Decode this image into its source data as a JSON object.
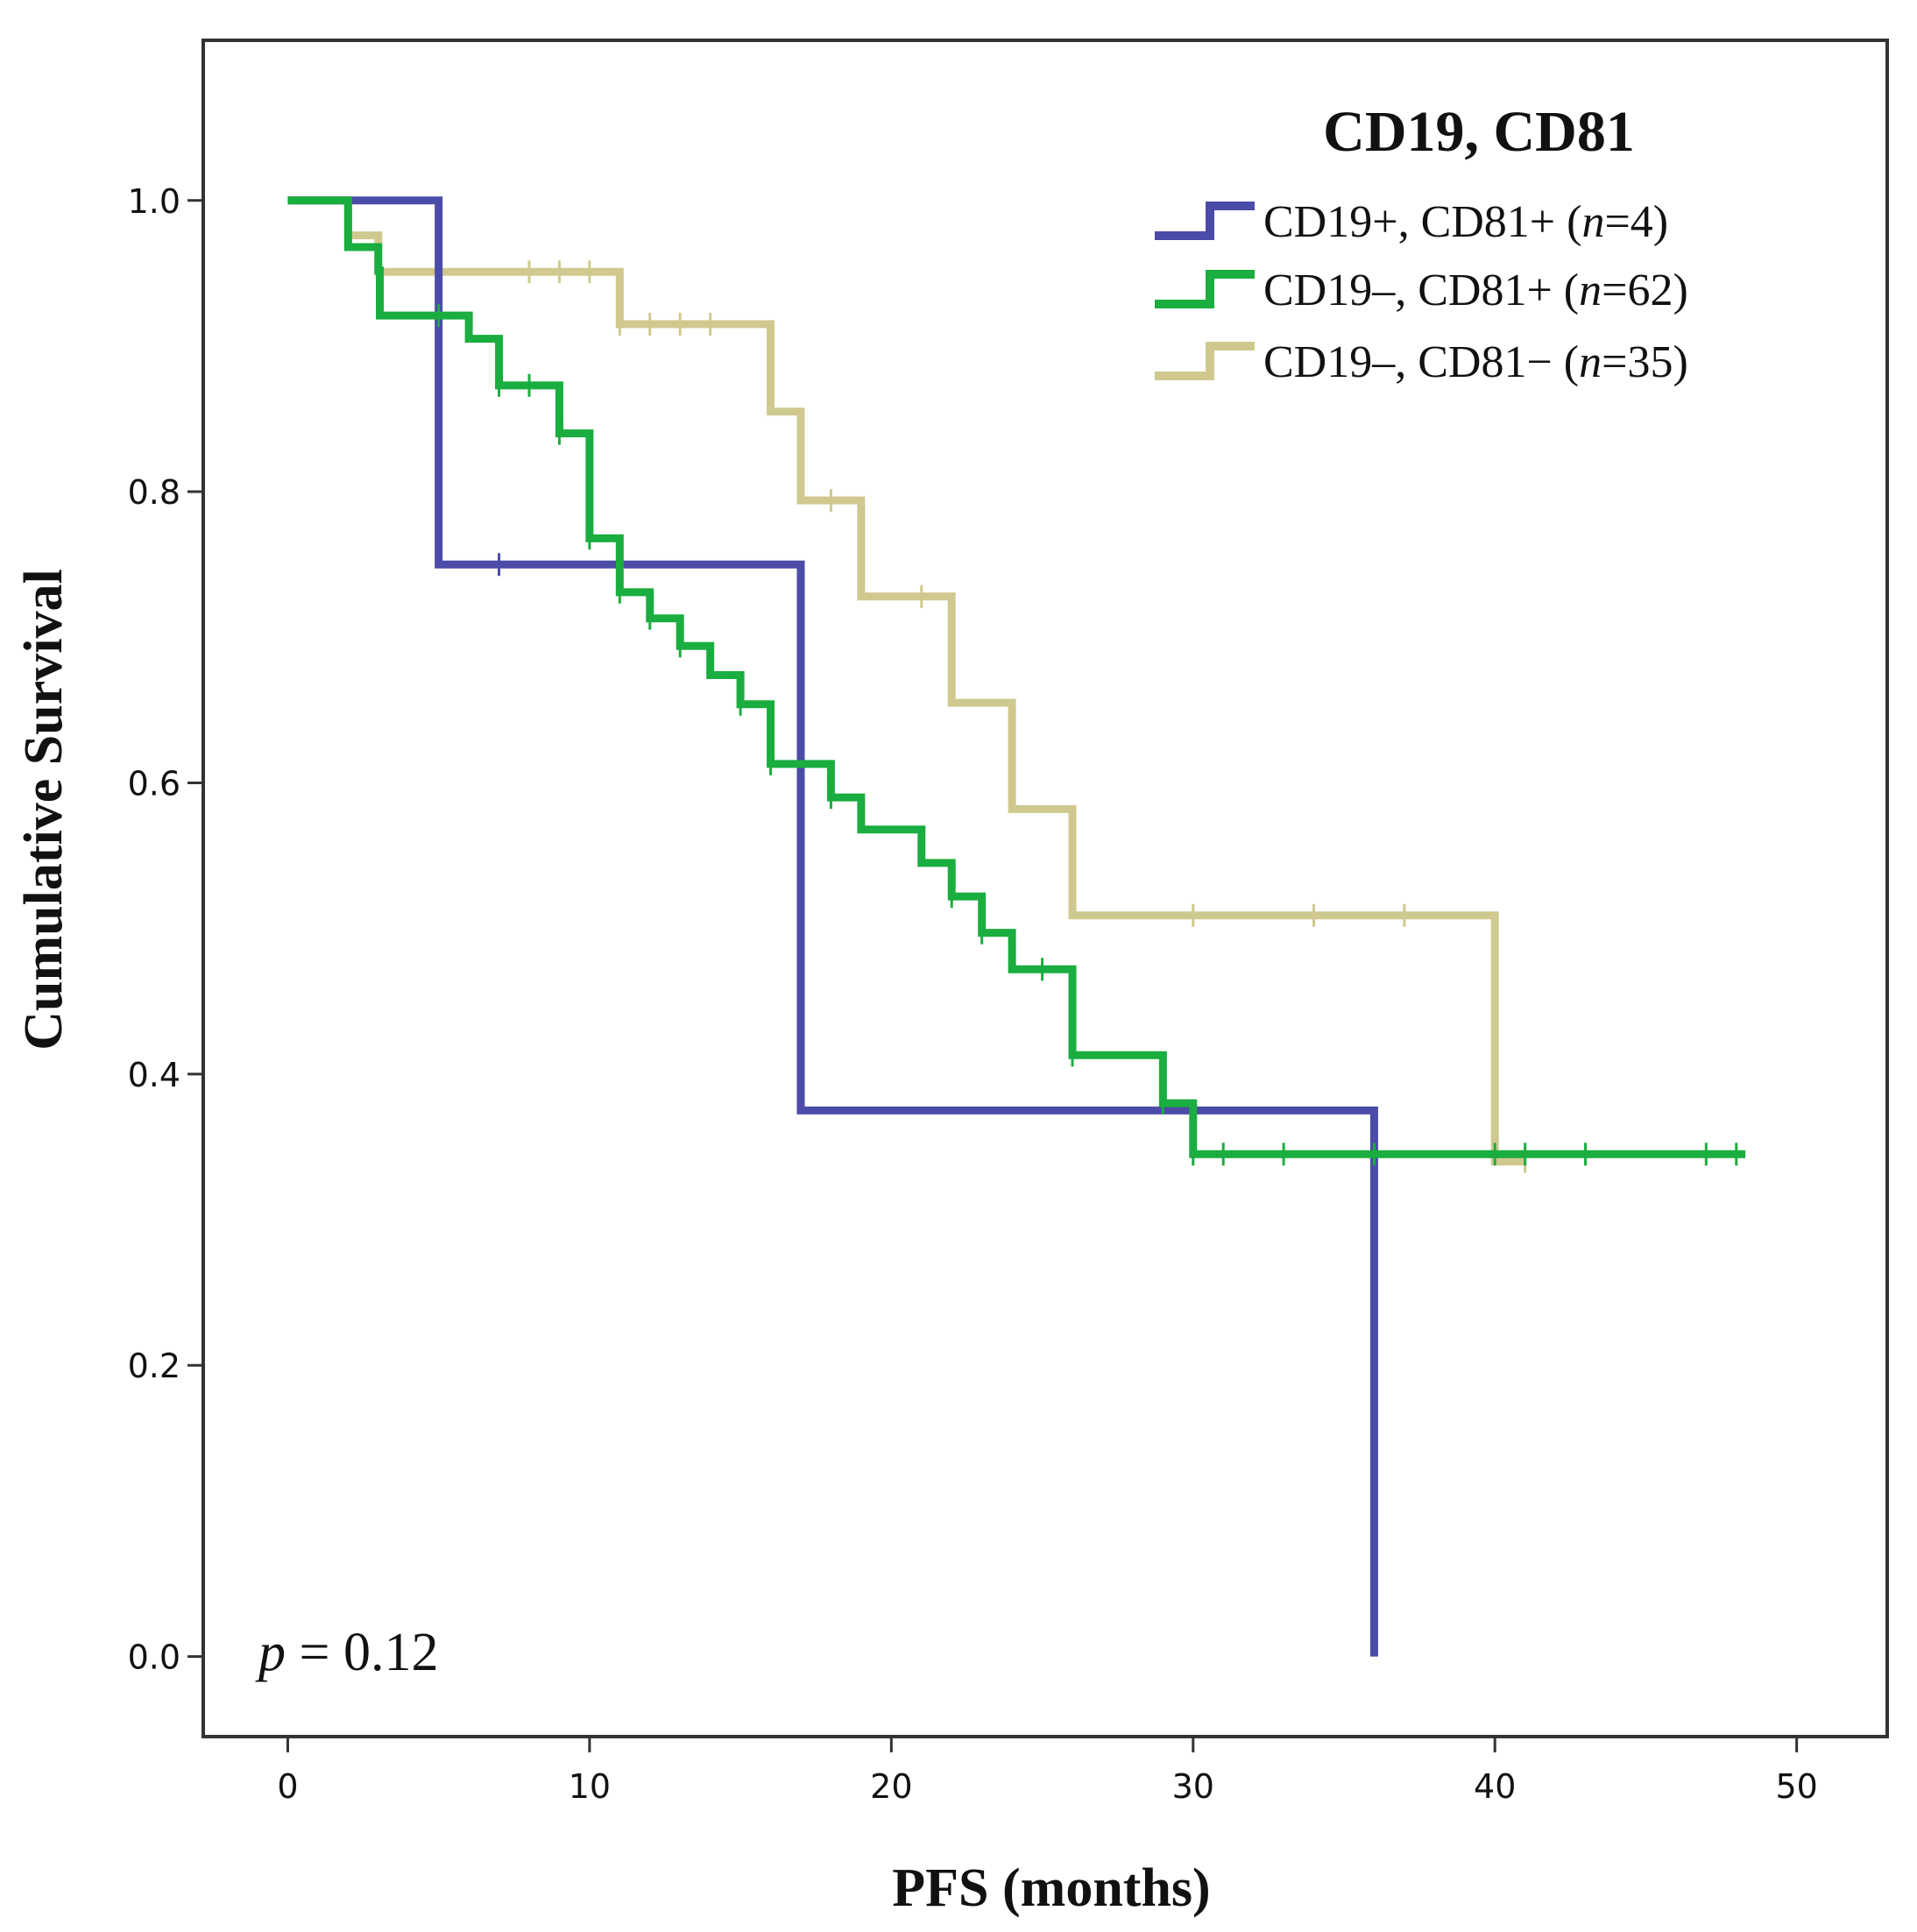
{
  "chart_data": {
    "type": "line",
    "subtype": "kaplan-meier step",
    "title": "CD19, CD81",
    "xlabel": "PFS (months)",
    "ylabel": "Cumulative Survival",
    "xlim": [
      -2.8,
      53
    ],
    "ylim": [
      -0.055,
      1.11
    ],
    "xticks": [
      0,
      10,
      20,
      30,
      40,
      50
    ],
    "xtick_labels": [
      "0",
      "10",
      "20",
      "30",
      "40",
      "50"
    ],
    "yticks": [
      0.0,
      0.2,
      0.4,
      0.6,
      0.8,
      1.0
    ],
    "ytick_labels": [
      "0.0",
      "0.2",
      "0.4",
      "0.6",
      "0.8",
      "1.0"
    ],
    "grid": false,
    "legend_position": "top-right",
    "annotation": {
      "italic": "p",
      "text": " = 0.12"
    },
    "series": [
      {
        "name": "CD19+, CD81+ (n=4)",
        "name_parts": {
          "pre": "CD19+, CD81+ (",
          "italic": "n",
          "post": "=4)"
        },
        "color": "#4b4ba8",
        "steps": [
          [
            0,
            1.0
          ],
          [
            5,
            0.75
          ],
          [
            17,
            0.375
          ],
          [
            36,
            0.0
          ]
        ],
        "end_x": 36,
        "censored": [
          [
            7,
            0.75
          ]
        ]
      },
      {
        "name": "CD19–, CD81+ (n=62)",
        "name_parts": {
          "pre": "CD19–, CD81+ (",
          "italic": "n",
          "post": "=62)"
        },
        "color": "#1aad3f",
        "steps": [
          [
            0,
            1.0
          ],
          [
            2,
            0.968
          ],
          [
            3,
            0.952
          ],
          [
            3.05,
            0.921
          ],
          [
            5,
            0.921
          ],
          [
            6,
            0.905
          ],
          [
            7,
            0.873
          ],
          [
            9,
            0.84
          ],
          [
            10,
            0.768
          ],
          [
            11,
            0.731
          ],
          [
            12,
            0.713
          ],
          [
            13,
            0.694
          ],
          [
            14,
            0.674
          ],
          [
            15,
            0.654
          ],
          [
            16,
            0.613
          ],
          [
            18,
            0.59
          ],
          [
            19,
            0.568
          ],
          [
            21,
            0.545
          ],
          [
            22,
            0.522
          ],
          [
            23,
            0.497
          ],
          [
            24,
            0.472
          ],
          [
            26,
            0.413
          ],
          [
            29,
            0.38
          ],
          [
            30,
            0.345
          ]
        ],
        "end_x": 48.3,
        "censored": [
          [
            5,
            0.921
          ],
          [
            7,
            0.873
          ],
          [
            8,
            0.873
          ],
          [
            9,
            0.84
          ],
          [
            10,
            0.768
          ],
          [
            11,
            0.731
          ],
          [
            12,
            0.713
          ],
          [
            13,
            0.694
          ],
          [
            15,
            0.654
          ],
          [
            16,
            0.613
          ],
          [
            18,
            0.59
          ],
          [
            22,
            0.522
          ],
          [
            23,
            0.497
          ],
          [
            25,
            0.472
          ],
          [
            26,
            0.413
          ],
          [
            29,
            0.38
          ],
          [
            30,
            0.345
          ],
          [
            31,
            0.345
          ],
          [
            33,
            0.345
          ],
          [
            36,
            0.345
          ],
          [
            40,
            0.345
          ],
          [
            41,
            0.345
          ],
          [
            43,
            0.345
          ],
          [
            47,
            0.345
          ],
          [
            48,
            0.345
          ]
        ]
      },
      {
        "name": "CD19–, CD81− (n=35)",
        "name_parts": {
          "pre": "CD19–, CD81− (",
          "italic": "n",
          "post": "=35)"
        },
        "color": "#cfc98f",
        "steps": [
          [
            0,
            1.0
          ],
          [
            2,
            0.976
          ],
          [
            3,
            0.951
          ],
          [
            11,
            0.915
          ],
          [
            16,
            0.855
          ],
          [
            17,
            0.794
          ],
          [
            19,
            0.728
          ],
          [
            22,
            0.655
          ],
          [
            24,
            0.582
          ],
          [
            26,
            0.509
          ],
          [
            40,
            0.34
          ]
        ],
        "end_x": 41,
        "censored": [
          [
            5,
            0.951
          ],
          [
            8,
            0.951
          ],
          [
            9,
            0.951
          ],
          [
            10,
            0.951
          ],
          [
            11,
            0.915
          ],
          [
            12,
            0.915
          ],
          [
            13,
            0.915
          ],
          [
            14,
            0.915
          ],
          [
            18,
            0.794
          ],
          [
            21,
            0.728
          ],
          [
            30,
            0.509
          ],
          [
            34,
            0.509
          ],
          [
            37,
            0.509
          ],
          [
            41,
            0.34
          ]
        ]
      }
    ]
  }
}
